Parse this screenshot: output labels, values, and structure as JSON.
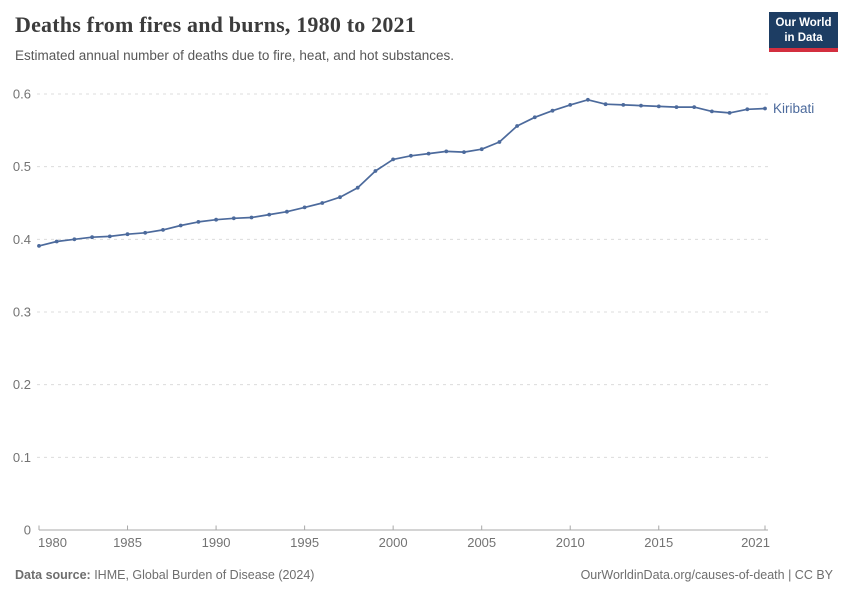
{
  "header": {
    "title": "Deaths from fires and burns, 1980 to 2021",
    "subtitle": "Estimated annual number of deaths due to fire, heat, and hot substances.",
    "logo": {
      "line1": "Our World",
      "line2": "in Data",
      "bg_color": "#1d3d63",
      "accent_color": "#d32f3f"
    }
  },
  "footer": {
    "source_label": "Data source:",
    "source_text": " IHME, Global Burden of Disease (2024)",
    "right_text": "OurWorldinData.org/causes-of-death | CC BY"
  },
  "chart_data": {
    "type": "line",
    "title": "Deaths from fires and burns, 1980 to 2021",
    "x": [
      1980,
      1981,
      1982,
      1983,
      1984,
      1985,
      1986,
      1987,
      1988,
      1989,
      1990,
      1991,
      1992,
      1993,
      1994,
      1995,
      1996,
      1997,
      1998,
      1999,
      2000,
      2001,
      2002,
      2003,
      2004,
      2005,
      2006,
      2007,
      2008,
      2009,
      2010,
      2011,
      2012,
      2013,
      2014,
      2015,
      2016,
      2017,
      2018,
      2019,
      2020,
      2021
    ],
    "series": [
      {
        "name": "Kiribati",
        "color": "#4c6a9c",
        "values": [
          0.391,
          0.397,
          0.4,
          0.403,
          0.404,
          0.407,
          0.409,
          0.413,
          0.419,
          0.424,
          0.427,
          0.429,
          0.43,
          0.434,
          0.438,
          0.444,
          0.45,
          0.458,
          0.471,
          0.494,
          0.51,
          0.515,
          0.518,
          0.521,
          0.52,
          0.524,
          0.534,
          0.556,
          0.568,
          0.577,
          0.585,
          0.592,
          0.586,
          0.585,
          0.584,
          0.583,
          0.582,
          0.582,
          0.576,
          0.574,
          0.579,
          0.58
        ]
      }
    ],
    "ylim": [
      0,
      0.6
    ],
    "yticks": [
      0,
      0.1,
      0.2,
      0.3,
      0.4,
      0.5,
      0.6
    ],
    "ytick_labels": [
      "0",
      "0.1",
      "0.2",
      "0.3",
      "0.4",
      "0.5",
      "0.6"
    ],
    "xticks": [
      1980,
      1985,
      1990,
      1995,
      2000,
      2005,
      2010,
      2015,
      2021
    ],
    "xlabel": "",
    "ylabel": "",
    "grid": "horizontal-dashed",
    "legend": "end-of-line-label",
    "colors": {
      "gridline": "#dcdcdc",
      "axis": "#a8a8a8",
      "tick_label": "#737373"
    }
  }
}
